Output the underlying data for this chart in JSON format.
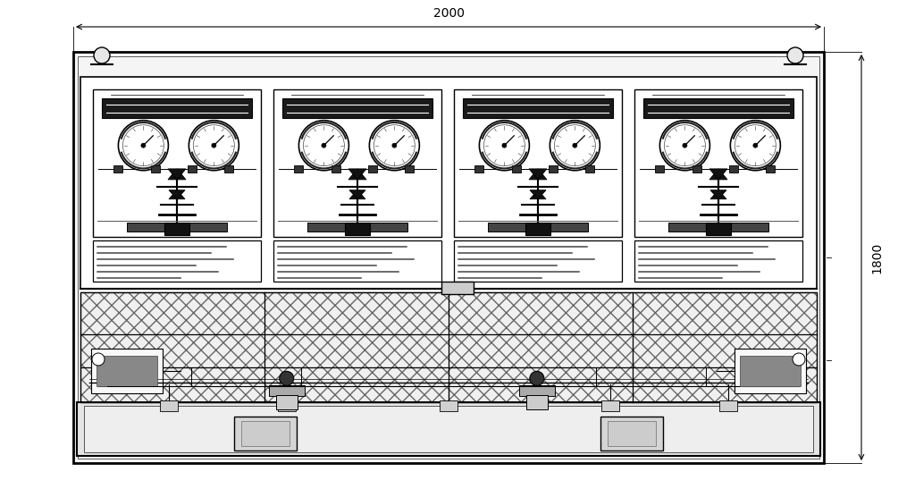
{
  "bg_color": "#ffffff",
  "lc": "#000000",
  "fig_width": 10.24,
  "fig_height": 5.56,
  "top_dim_label": "2000",
  "right_dim_label": "1800"
}
